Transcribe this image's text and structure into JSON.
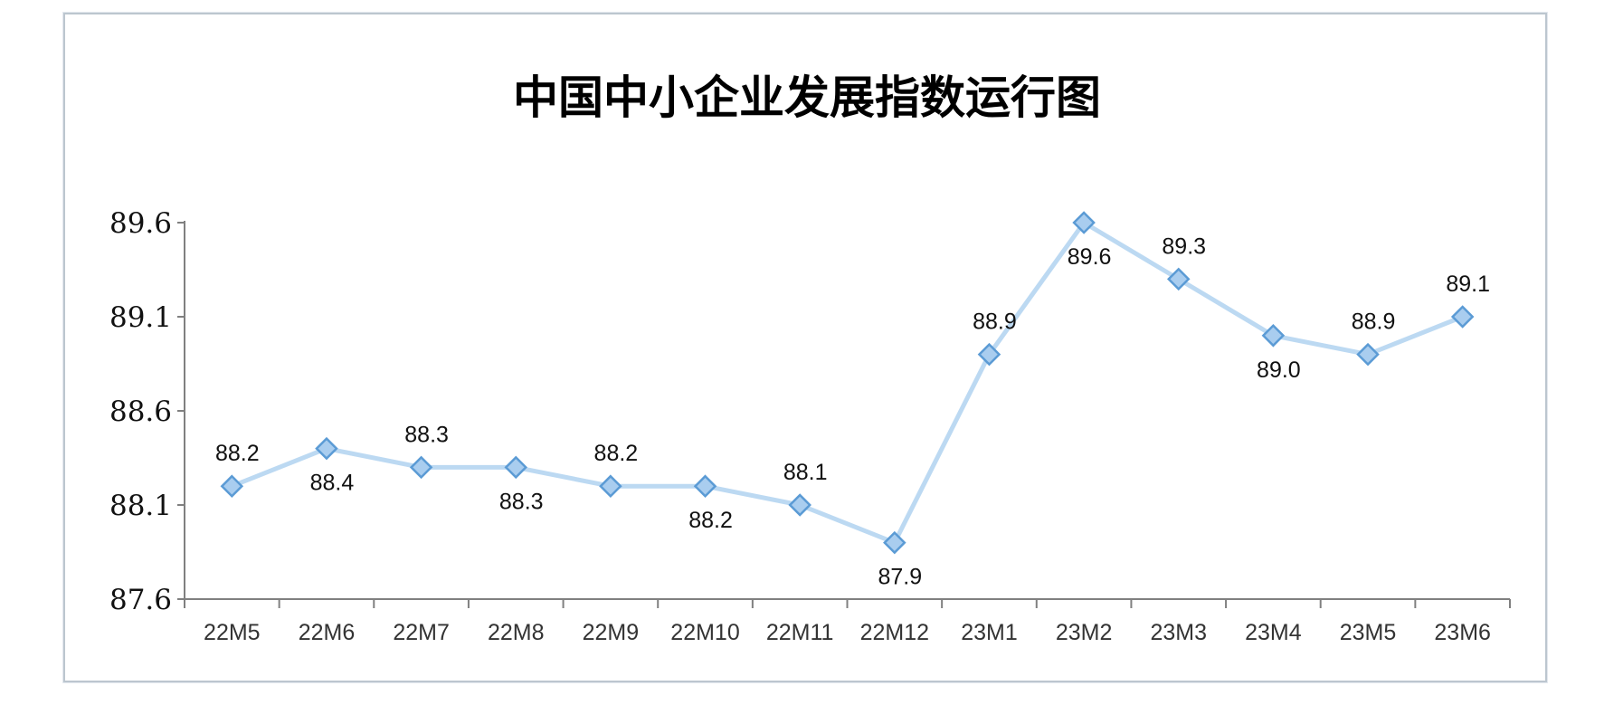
{
  "chart_data": {
    "type": "line",
    "title": "中国中小企业发展指数运行图",
    "xlabel": "",
    "ylabel": "",
    "categories": [
      "22M5",
      "22M6",
      "22M7",
      "22M8",
      "22M9",
      "22M10",
      "22M11",
      "22M12",
      "23M1",
      "23M2",
      "23M3",
      "23M4",
      "23M5",
      "23M6"
    ],
    "series": [
      {
        "values": [
          88.2,
          88.4,
          88.3,
          88.3,
          88.2,
          88.2,
          88.1,
          87.9,
          88.9,
          89.6,
          89.3,
          89.0,
          88.9,
          89.1
        ],
        "value_labels": [
          "88.2",
          "88.4",
          "88.3",
          "88.3",
          "88.2",
          "88.2",
          "88.1",
          "87.9",
          "88.9",
          "89.6",
          "89.3",
          "89.0",
          "88.9",
          "89.1"
        ],
        "label_positions": [
          "above",
          "below",
          "above",
          "below",
          "above",
          "below",
          "above",
          "below",
          "above",
          "below",
          "above",
          "below",
          "above",
          "above"
        ]
      }
    ],
    "ylim": [
      87.6,
      89.6
    ],
    "yticks": [
      87.6,
      88.1,
      88.6,
      89.1,
      89.6
    ],
    "ytick_labels": [
      "87.6",
      "88.1",
      "88.6",
      "89.1",
      "89.6"
    ],
    "grid": false,
    "legend": "none",
    "colors": {
      "line": "#bcd9f2",
      "marker_fill": "#a9cdef",
      "marker_stroke": "#5b9bd5",
      "axis": "#808080"
    }
  }
}
